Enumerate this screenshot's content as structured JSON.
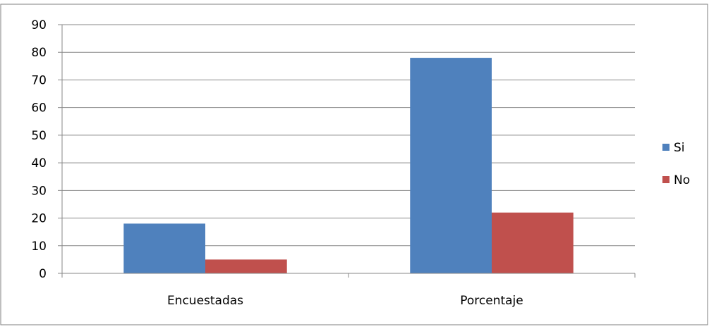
{
  "chart_data": {
    "type": "bar",
    "categories": [
      "Encuestadas",
      "Porcentaje"
    ],
    "series": [
      {
        "name": "Si",
        "values": [
          18,
          78
        ],
        "color": "#4F81BD"
      },
      {
        "name": "No",
        "values": [
          5,
          22
        ],
        "color": "#C0504D"
      }
    ],
    "ylim": [
      0,
      90
    ],
    "yticks": [
      "0",
      "10",
      "20",
      "30",
      "40",
      "50",
      "60",
      "70",
      "80",
      "90"
    ],
    "grid": true,
    "legend": "right",
    "xlabel": "",
    "ylabel": "",
    "title": ""
  }
}
